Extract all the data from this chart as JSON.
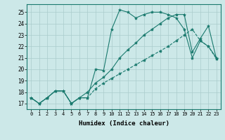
{
  "xlabel": "Humidex (Indice chaleur)",
  "bg_color": "#cce8e8",
  "line_color": "#1a7a6e",
  "grid_color": "#aacccc",
  "xlim": [
    -0.5,
    23.5
  ],
  "ylim": [
    16.5,
    25.7
  ],
  "xticks": [
    0,
    1,
    2,
    3,
    4,
    5,
    6,
    7,
    8,
    9,
    10,
    11,
    12,
    13,
    14,
    15,
    16,
    17,
    18,
    19,
    20,
    21,
    22,
    23
  ],
  "yticks": [
    17,
    18,
    19,
    20,
    21,
    22,
    23,
    24,
    25
  ],
  "series1": [
    17.5,
    17.0,
    17.5,
    18.1,
    18.1,
    17.0,
    17.5,
    17.5,
    20.0,
    19.9,
    23.5,
    25.2,
    25.0,
    24.5,
    24.8,
    25.0,
    25.0,
    24.8,
    24.5,
    23.5,
    21.0,
    22.5,
    22.0,
    21.0
  ],
  "series2": [
    17.5,
    17.0,
    17.5,
    18.1,
    18.1,
    17.0,
    17.5,
    18.0,
    18.8,
    19.3,
    20.0,
    21.0,
    21.7,
    22.3,
    23.0,
    23.5,
    24.0,
    24.5,
    24.8,
    24.8,
    21.5,
    22.7,
    23.8,
    20.9
  ],
  "series3": [
    17.5,
    17.0,
    17.5,
    18.1,
    18.1,
    17.0,
    17.5,
    17.5,
    18.3,
    18.8,
    19.2,
    19.6,
    20.0,
    20.4,
    20.8,
    21.2,
    21.6,
    22.0,
    22.5,
    23.0,
    23.5,
    22.5,
    22.0,
    20.9
  ],
  "marker": "*",
  "markersize": 3,
  "linewidth": 0.8
}
